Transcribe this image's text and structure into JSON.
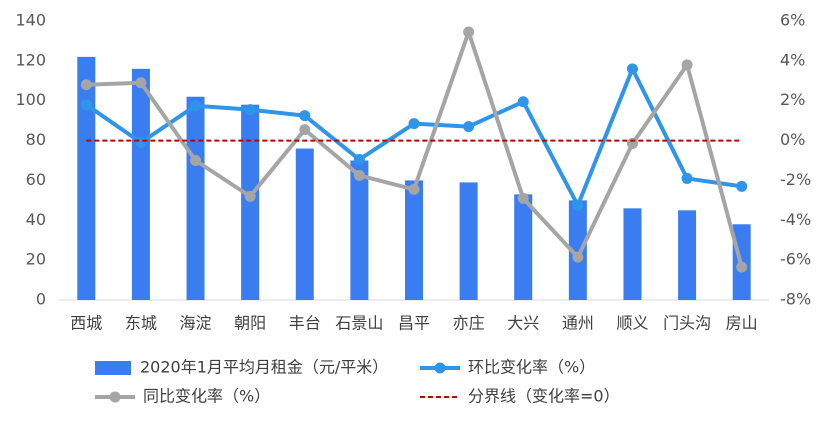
{
  "chart_data": {
    "type": "bar",
    "categories": [
      "西城",
      "东城",
      "海淀",
      "朝阳",
      "丰台",
      "石景山",
      "昌平",
      "亦庄",
      "大兴",
      "通州",
      "顺义",
      "门头沟",
      "房山"
    ],
    "series": [
      {
        "name": "2020年1月平均月租金（元/平米）",
        "type": "bar",
        "color": "#3a7df0",
        "values": [
          122,
          116,
          102,
          98,
          76,
          70,
          60,
          59,
          53,
          50,
          46,
          45,
          38
        ]
      },
      {
        "name": "环比变化率（%）",
        "type": "line",
        "axis": "y2",
        "color": "#2e95e8",
        "markers": true,
        "values": [
          1.8,
          -0.1,
          1.75,
          1.55,
          1.25,
          -0.95,
          0.85,
          0.7,
          1.95,
          -3.25,
          3.6,
          -1.9,
          -2.3
        ]
      },
      {
        "name": "同比变化率（%）",
        "type": "line",
        "axis": "y2",
        "color": "#a5a5a5",
        "markers": true,
        "values": [
          2.8,
          2.9,
          -1.0,
          -2.8,
          0.55,
          -1.75,
          -2.45,
          5.45,
          -2.9,
          -5.85,
          -0.15,
          3.8,
          -6.35
        ]
      },
      {
        "name": "分界线（变化率=0）",
        "type": "line",
        "axis": "y2",
        "color": "#c00000",
        "dashed": true,
        "markers": false,
        "values": [
          0,
          0,
          0,
          0,
          0,
          0,
          0,
          0,
          0,
          0,
          0,
          0,
          0
        ]
      }
    ],
    "ylim": [
      0,
      140
    ],
    "yticks": [
      0,
      20,
      40,
      60,
      80,
      100,
      120,
      140
    ],
    "y2lim": [
      -8,
      6
    ],
    "y2ticks": [
      {
        "value": -8,
        "label": "-8%"
      },
      {
        "value": -6,
        "label": "-6%"
      },
      {
        "value": -4,
        "label": "-4%"
      },
      {
        "value": -2,
        "label": "-2%"
      },
      {
        "value": 0,
        "label": "0%"
      },
      {
        "value": 2,
        "label": "2%"
      },
      {
        "value": 4,
        "label": "4%"
      },
      {
        "value": 6,
        "label": "6%"
      }
    ],
    "grid": false,
    "legend": "bottom"
  }
}
